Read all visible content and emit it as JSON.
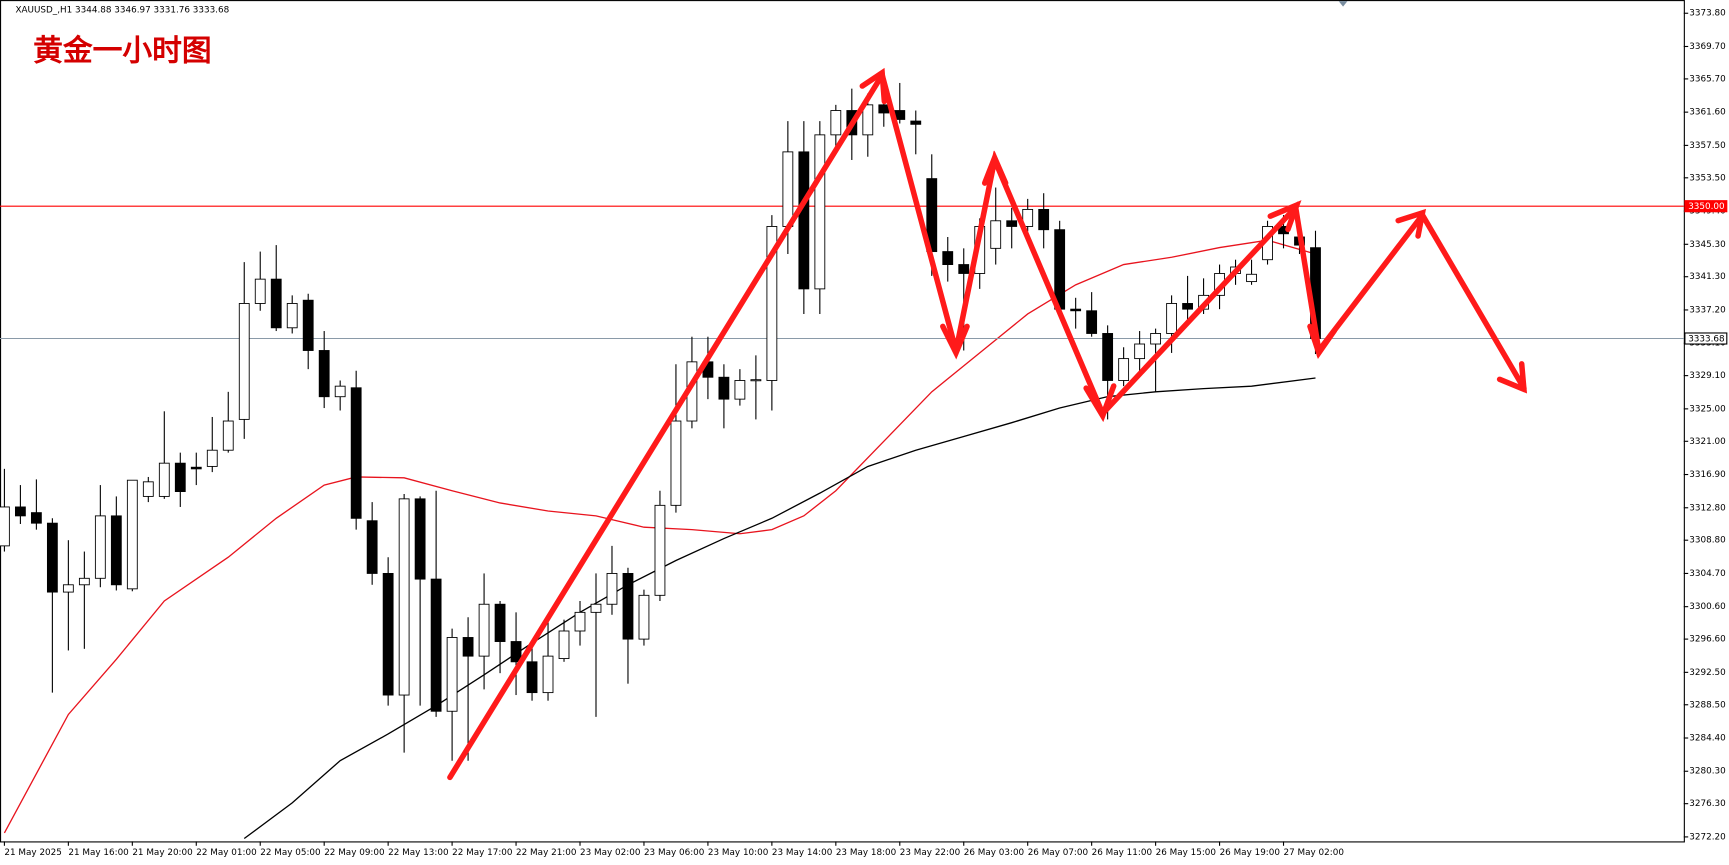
{
  "chart_data": {
    "type": "candlestick",
    "header": "XAUUSD_,H1  3344.88 3346.97 3331.76 3333.68",
    "title": "黄金一小时图",
    "title_color": "#d40000",
    "categories": [
      "21 May 2025",
      null,
      null,
      null,
      "21 May 16:00",
      null,
      null,
      null,
      "21 May 20:00",
      null,
      null,
      null,
      "22 May 01:00",
      null,
      null,
      null,
      "22 May 05:00",
      null,
      null,
      null,
      "22 May 09:00",
      null,
      null,
      null,
      "22 May 13:00",
      null,
      null,
      null,
      "22 May 17:00",
      null,
      null,
      null,
      "22 May 21:00",
      null,
      null,
      null,
      "23 May 02:00",
      null,
      null,
      null,
      "23 May 06:00",
      null,
      null,
      null,
      "23 May 10:00",
      null,
      null,
      null,
      "23 May 14:00",
      null,
      null,
      null,
      "23 May 18:00",
      null,
      null,
      null,
      "23 May 22:00",
      null,
      null,
      null,
      "26 May 03:00",
      null,
      null,
      null,
      "26 May 07:00",
      null,
      null,
      null,
      "26 May 11:00",
      null,
      null,
      null,
      "26 May 15:00",
      null,
      null,
      null,
      "26 May 19:00",
      null,
      null,
      null,
      "27 May 02:00",
      null,
      null
    ],
    "open": [
      3308.1,
      3312.9,
      3312.2,
      3310.9,
      3302.4,
      3303.3,
      3304.1,
      3311.8,
      3302.8,
      3314.2,
      3314.2,
      3318.3,
      3317.8,
      3317.9,
      3319.9,
      3323.7,
      3338.0,
      3341.0,
      3335.0,
      3338.4,
      3332.2,
      3326.5,
      3327.6,
      3311.2,
      3304.7,
      3289.7,
      3313.9,
      3304.0,
      3287.7,
      3296.8,
      3294.5,
      3300.9,
      3296.3,
      3293.8,
      3290.0,
      3294.2,
      3297.6,
      3299.9,
      3300.9,
      3304.7,
      3296.6,
      3302.0,
      3313.1,
      3323.5,
      3330.8,
      3328.9,
      3326.2,
      3328.5,
      3328.5,
      3347.5,
      3356.7,
      3339.8,
      3358.8,
      3361.8,
      3358.8,
      3362.5,
      3361.8,
      3360.5,
      3353.4,
      3344.4,
      3342.8,
      3341.7,
      3344.8,
      3348.2,
      3347.5,
      3349.6,
      3347.1,
      3337.3,
      3337.1,
      3334.3,
      3328.5,
      3331.2,
      3333.0,
      3334.3,
      3338.0,
      3337.3,
      3339.0,
      3341.7,
      3340.7,
      3343.4,
      3347.5,
      3346.2,
      3344.88
    ],
    "high": [
      3317.6,
      3315.6,
      3316.3,
      3311.5,
      3308.8,
      3307.4,
      3315.6,
      3314.2,
      3316.2,
      3316.6,
      3324.7,
      3319.6,
      3319.6,
      3324.0,
      3327.1,
      3343.1,
      3344.4,
      3345.2,
      3339.0,
      3339.2,
      3334.6,
      3328.5,
      3329.7,
      3313.5,
      3306.7,
      3314.5,
      3314.2,
      3314.9,
      3297.9,
      3299.3,
      3304.7,
      3301.3,
      3299.9,
      3295.8,
      3299.3,
      3299.0,
      3301.3,
      3304.7,
      3308.1,
      3305.4,
      3302.7,
      3314.9,
      3330.5,
      3333.9,
      3333.9,
      3330.5,
      3329.9,
      3331.6,
      3348.9,
      3360.5,
      3360.5,
      3360.5,
      3362.5,
      3364.5,
      3363.9,
      3364.5,
      3365.2,
      3361.8,
      3356.4,
      3346.2,
      3344.8,
      3348.5,
      3352.3,
      3349.8,
      3350.9,
      3351.6,
      3348.2,
      3338.7,
      3339.4,
      3335.3,
      3332.6,
      3334.6,
      3334.9,
      3339.0,
      3341.4,
      3341.1,
      3342.8,
      3343.4,
      3343.4,
      3348.2,
      3348.9,
      3347.5,
      3346.97
    ],
    "low": [
      3307.4,
      3310.8,
      3310.1,
      3290.0,
      3295.2,
      3295.4,
      3303.0,
      3302.6,
      3302.5,
      3313.5,
      3313.9,
      3312.9,
      3315.6,
      3317.2,
      3319.6,
      3321.3,
      3337.1,
      3334.6,
      3334.3,
      3329.9,
      3325.1,
      3324.8,
      3310.1,
      3303.3,
      3288.4,
      3282.6,
      3288.4,
      3287.0,
      3281.6,
      3281.6,
      3290.4,
      3292.4,
      3289.7,
      3289.0,
      3289.0,
      3293.8,
      3295.8,
      3287.0,
      3299.6,
      3291.1,
      3295.8,
      3301.3,
      3312.2,
      3322.6,
      3326.2,
      3322.6,
      3325.4,
      3323.7,
      3324.8,
      3344.1,
      3336.7,
      3336.7,
      3356.4,
      3355.7,
      3356.1,
      3359.8,
      3360.2,
      3356.4,
      3341.4,
      3340.7,
      3332.2,
      3339.8,
      3342.8,
      3344.8,
      3346.9,
      3344.8,
      3337.1,
      3334.9,
      3333.9,
      3323.7,
      3327.8,
      3329.4,
      3327.1,
      3331.9,
      3336.0,
      3336.7,
      3337.3,
      3340.3,
      3340.3,
      3342.8,
      3344.8,
      3344.1,
      3331.76
    ],
    "close": [
      3312.9,
      3311.8,
      3310.9,
      3302.4,
      3303.3,
      3304.1,
      3311.8,
      3303.3,
      3316.2,
      3316.0,
      3318.3,
      3314.8,
      3317.6,
      3319.9,
      3323.5,
      3338.0,
      3341.0,
      3335.0,
      3338.0,
      3332.2,
      3326.5,
      3327.8,
      3311.5,
      3304.7,
      3289.7,
      3313.9,
      3304.0,
      3287.7,
      3296.8,
      3294.5,
      3300.9,
      3296.3,
      3293.8,
      3290.0,
      3294.5,
      3297.6,
      3299.9,
      3300.9,
      3304.7,
      3296.6,
      3302.0,
      3313.1,
      3323.5,
      3330.8,
      3328.9,
      3326.2,
      3328.5,
      3328.6,
      3347.5,
      3356.7,
      3339.8,
      3358.8,
      3361.8,
      3358.8,
      3362.5,
      3361.5,
      3360.7,
      3360.1,
      3344.4,
      3342.8,
      3341.7,
      3347.5,
      3348.2,
      3347.5,
      3349.6,
      3347.1,
      3337.3,
      3337.1,
      3334.3,
      3328.5,
      3331.2,
      3333.0,
      3334.3,
      3338.0,
      3337.3,
      3339.0,
      3341.7,
      3342.5,
      3341.6,
      3347.5,
      3346.6,
      3345.2,
      3333.68
    ],
    "lines": [
      {
        "color": "#e8141e",
        "x": [
          0,
          4,
          7,
          10,
          14,
          17,
          20,
          22,
          25,
          28,
          31,
          34,
          37,
          40,
          43,
          46,
          48,
          50,
          52,
          55,
          58,
          61,
          64,
          67,
          70,
          73,
          76,
          79,
          82
        ],
        "values": [
          3272.7,
          3287.3,
          3294.1,
          3301.3,
          3306.7,
          3311.5,
          3315.6,
          3316.6,
          3316.5,
          3314.9,
          3313.4,
          3312.4,
          3311.8,
          3310.4,
          3310.1,
          3309.6,
          3310.1,
          3311.8,
          3314.9,
          3321.0,
          3327.1,
          3331.9,
          3336.7,
          3340.3,
          3342.8,
          3343.7,
          3344.9,
          3345.8,
          3344.1
        ]
      },
      {
        "color": "#000000",
        "x": [
          15,
          18,
          21,
          24,
          27,
          30,
          33,
          36,
          39,
          42,
          45,
          48,
          51,
          54,
          57,
          60,
          63,
          66,
          69,
          72,
          75,
          78,
          82
        ],
        "values": [
          3272.0,
          3276.4,
          3281.6,
          3284.9,
          3288.4,
          3292.2,
          3296.1,
          3299.9,
          3303.3,
          3306.3,
          3309.0,
          3311.5,
          3314.6,
          3317.9,
          3319.9,
          3321.6,
          3323.3,
          3325.1,
          3326.5,
          3327.1,
          3327.5,
          3327.8,
          3328.8
        ]
      }
    ],
    "hlines": [
      {
        "value": 3350,
        "label": "3350.00",
        "color": "#ff0000"
      },
      {
        "value": 3333.68,
        "label": "3333.68",
        "color": "#8a9aa8"
      }
    ],
    "ylim": [
      3271.65,
      3375.43
    ],
    "yticks": [
      {
        "value": 3373.8,
        "label": "3373.80"
      },
      {
        "value": 3369.7,
        "label": "3369.70"
      },
      {
        "value": 3365.7,
        "label": "3365.70"
      },
      {
        "value": 3361.6,
        "label": "3361.60"
      },
      {
        "value": 3357.5,
        "label": "3357.50"
      },
      {
        "value": 3353.5,
        "label": "3353.50"
      },
      {
        "value": 3349.4,
        "label": "3349.40"
      },
      {
        "value": 3345.3,
        "label": "3345.30"
      },
      {
        "value": 3341.3,
        "label": "3341.30"
      },
      {
        "value": 3337.2,
        "label": "3337.20"
      },
      {
        "value": 3333.1,
        "label": "3333.10"
      },
      {
        "value": 3329.1,
        "label": "3329.10"
      },
      {
        "value": 3325.0,
        "label": "3325.00"
      },
      {
        "value": 3321.0,
        "label": "3321.00"
      },
      {
        "value": 3316.9,
        "label": "3316.90"
      },
      {
        "value": 3312.8,
        "label": "3312.80"
      },
      {
        "value": 3308.8,
        "label": "3308.80"
      },
      {
        "value": 3304.7,
        "label": "3304.70"
      },
      {
        "value": 3300.6,
        "label": "3300.60"
      },
      {
        "value": 3296.6,
        "label": "3296.60"
      },
      {
        "value": 3292.5,
        "label": "3292.50"
      },
      {
        "value": 3288.5,
        "label": "3288.50"
      },
      {
        "value": 3284.4,
        "label": "3284.40"
      },
      {
        "value": 3280.3,
        "label": "3280.30"
      },
      {
        "value": 3276.3,
        "label": "3276.30"
      },
      {
        "value": 3272.2,
        "label": "3272.20"
      }
    ]
  }
}
